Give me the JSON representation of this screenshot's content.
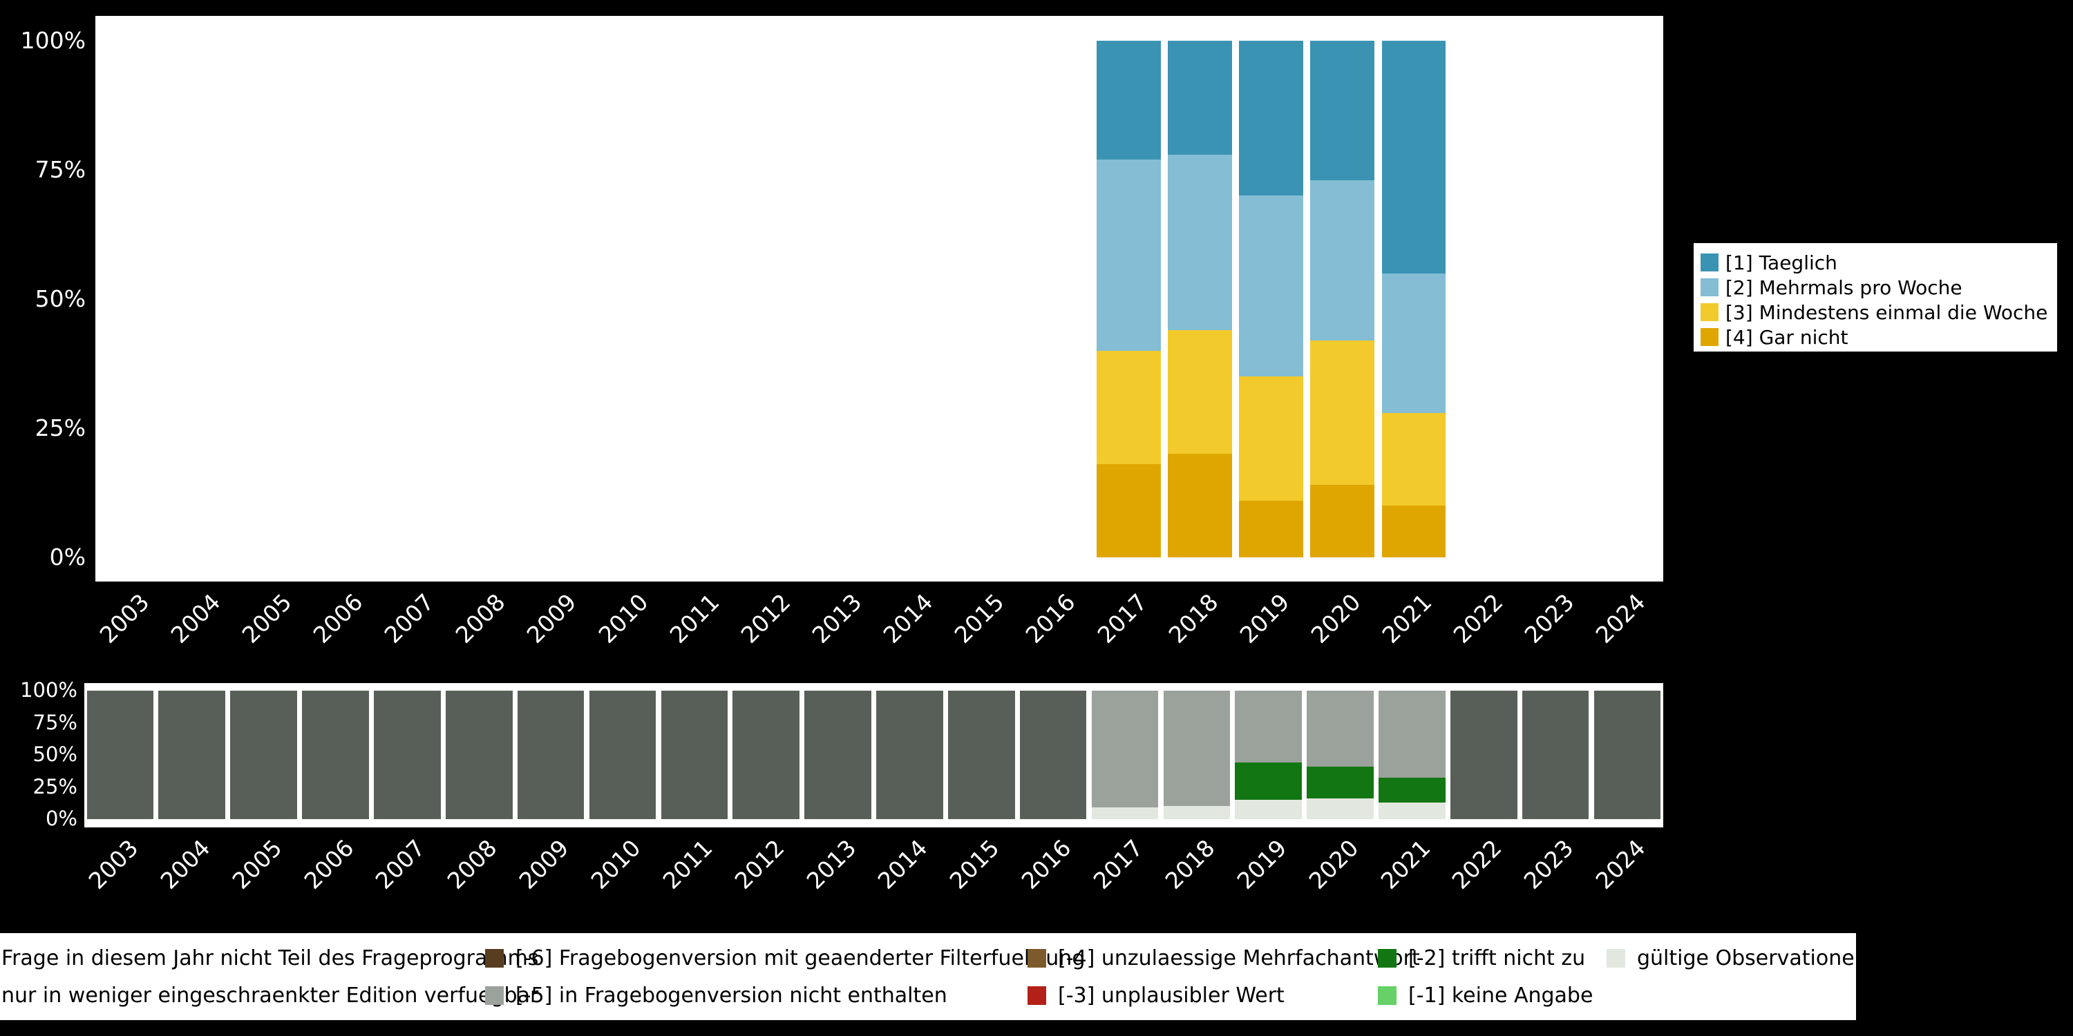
{
  "background_color": "#000000",
  "axis_text_color": "#ffffff",
  "chart_data": [
    {
      "name": "frequency-distribution",
      "type": "bar",
      "stacked": true,
      "unit": "percent",
      "stack_order": "bottom-to-top",
      "categories": [
        "2003",
        "2004",
        "2005",
        "2006",
        "2007",
        "2008",
        "2009",
        "2010",
        "2011",
        "2012",
        "2013",
        "2014",
        "2015",
        "2016",
        "2017",
        "2018",
        "2019",
        "2020",
        "2021",
        "2022",
        "2023",
        "2024"
      ],
      "ytick_labels": [
        "100%",
        "75%",
        "50%",
        "25%",
        "0%"
      ],
      "ytick_values": [
        100,
        75,
        50,
        25,
        0
      ],
      "ylim": [
        0,
        100
      ],
      "grid": false,
      "legend_position": "right",
      "series": [
        {
          "name": "[4] Gar nicht",
          "color": "#dfa601",
          "values": [
            0,
            0,
            0,
            0,
            0,
            0,
            0,
            0,
            0,
            0,
            0,
            0,
            0,
            0,
            18,
            20,
            11,
            14,
            10,
            0,
            0,
            0
          ]
        },
        {
          "name": "[3] Mindestens einmal die Woche",
          "color": "#f2ca2b",
          "values": [
            0,
            0,
            0,
            0,
            0,
            0,
            0,
            0,
            0,
            0,
            0,
            0,
            0,
            0,
            22,
            24,
            24,
            28,
            18,
            0,
            0,
            0
          ]
        },
        {
          "name": "[2] Mehrmals pro Woche",
          "color": "#84bdd4",
          "values": [
            0,
            0,
            0,
            0,
            0,
            0,
            0,
            0,
            0,
            0,
            0,
            0,
            0,
            0,
            37,
            34,
            35,
            31,
            27,
            0,
            0,
            0
          ]
        },
        {
          "name": "[1] Taeglich",
          "color": "#3a93b3",
          "values": [
            0,
            0,
            0,
            0,
            0,
            0,
            0,
            0,
            0,
            0,
            0,
            0,
            0,
            0,
            23,
            22,
            30,
            27,
            45,
            0,
            0,
            0
          ]
        }
      ]
    },
    {
      "name": "missing-values",
      "type": "bar",
      "stacked": true,
      "unit": "percent",
      "stack_order": "bottom-to-top",
      "categories": [
        "2003",
        "2004",
        "2005",
        "2006",
        "2007",
        "2008",
        "2009",
        "2010",
        "2011",
        "2012",
        "2013",
        "2014",
        "2015",
        "2016",
        "2017",
        "2018",
        "2019",
        "2020",
        "2021",
        "2022",
        "2023",
        "2024"
      ],
      "ytick_labels": [
        "100%",
        "75%",
        "50%",
        "25%",
        "0%"
      ],
      "ytick_values": [
        100,
        75,
        50,
        25,
        0
      ],
      "ylim": [
        0,
        100
      ],
      "grid": false,
      "series": [
        {
          "name": "gültige Observationen",
          "color": "#e2e7df",
          "values": [
            0,
            0,
            0,
            0,
            0,
            0,
            0,
            0,
            0,
            0,
            0,
            0,
            0,
            0,
            9,
            10,
            15,
            16,
            13,
            0,
            0,
            0
          ]
        },
        {
          "name": "[-2] trifft nicht zu",
          "color": "#127612",
          "values": [
            0,
            0,
            0,
            0,
            0,
            0,
            0,
            0,
            0,
            0,
            0,
            0,
            0,
            0,
            0,
            0,
            29,
            25,
            19,
            0,
            0,
            0
          ]
        },
        {
          "name": "[-5] in Fragebogenversion nicht enthalten",
          "color": "#9ba19b",
          "values": [
            0,
            0,
            0,
            0,
            0,
            0,
            0,
            0,
            0,
            0,
            0,
            0,
            0,
            0,
            91,
            90,
            56,
            59,
            68,
            0,
            0,
            0
          ]
        },
        {
          "name": "Frage in diesem Jahr nicht Teil des Frageprogramms",
          "color": "#585f58",
          "values": [
            100,
            100,
            100,
            100,
            100,
            100,
            100,
            100,
            100,
            100,
            100,
            100,
            100,
            100,
            0,
            0,
            0,
            0,
            0,
            100,
            100,
            100
          ]
        }
      ]
    }
  ],
  "legend_top": {
    "items": [
      {
        "label": "[1] Taeglich",
        "color": "#3a93b3"
      },
      {
        "label": "[2] Mehrmals pro Woche",
        "color": "#84bdd4"
      },
      {
        "label": "[3] Mindestens einmal die Woche",
        "color": "#f2ca2b"
      },
      {
        "label": "[4] Gar nicht",
        "color": "#dfa601"
      }
    ]
  },
  "legend_bottom": {
    "rows": [
      [
        {
          "label": "Frage in diesem Jahr nicht Teil des Frageprogramms",
          "color": "#585f58"
        },
        {
          "label": "[-6] Fragebogenversion mit geaenderter Filterfuehrung",
          "color": "#593d20"
        },
        {
          "label": "[-4] unzulaessige Mehrfachantwort",
          "color": "#7d5a2b"
        },
        {
          "label": "[-2] trifft nicht zu",
          "color": "#127612"
        },
        {
          "label": "gültige Observationen",
          "color": "#e2e7df"
        }
      ],
      [
        {
          "label": "nur in weniger eingeschraenkter Edition verfuegbar",
          "color": "#8f958f"
        },
        {
          "label": "[-5] in Fragebogenversion nicht enthalten",
          "color": "#9ba19b"
        },
        {
          "label": "[-3] unplausibler Wert",
          "color": "#b32017"
        },
        {
          "label": "[-1] keine Angabe",
          "color": "#66d166"
        }
      ]
    ]
  }
}
